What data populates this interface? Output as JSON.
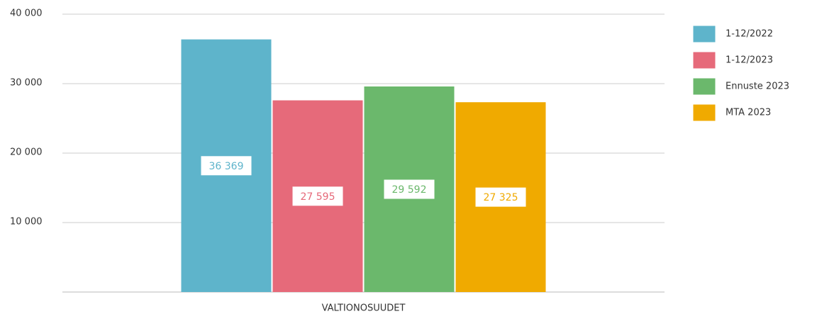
{
  "chart_data": {
    "type": "bar",
    "categories": [
      "VALTIONOSUUDET"
    ],
    "series": [
      {
        "name": "1-12/2022",
        "color": "#5eb4cb",
        "values": [
          36369
        ],
        "value_labels": [
          "36 369"
        ]
      },
      {
        "name": "1-12/2023",
        "color": "#e66a7a",
        "values": [
          27595
        ],
        "value_labels": [
          "27 595"
        ]
      },
      {
        "name": "Ennuste 2023",
        "color": "#6bb86c",
        "values": [
          29592
        ],
        "value_labels": [
          "29 592"
        ]
      },
      {
        "name": "MTA 2023",
        "color": "#f0aa00",
        "values": [
          27325
        ],
        "value_labels": [
          "27 325"
        ]
      }
    ],
    "ylim": [
      0,
      40000
    ],
    "yticks": [
      {
        "value": 10000,
        "label": "10 000"
      },
      {
        "value": 20000,
        "label": "20 000"
      },
      {
        "value": 30000,
        "label": "30 000"
      },
      {
        "value": 40000,
        "label": "40 000"
      }
    ],
    "grid": true,
    "legend": "right"
  }
}
